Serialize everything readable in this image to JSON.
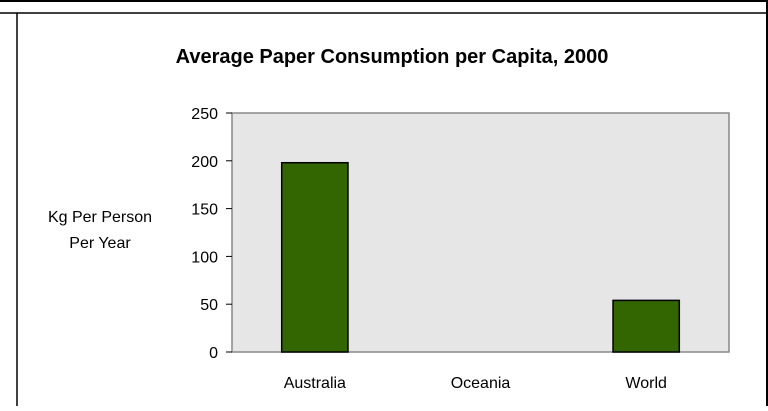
{
  "chart_data": {
    "type": "bar",
    "title": "Average Paper Consumption per Capita, 2000",
    "ylabel_lines": [
      "Kg Per Person",
      "Per Year"
    ],
    "categories": [
      "Australia",
      "Oceania",
      "World"
    ],
    "values": [
      198,
      0,
      54
    ],
    "ylim": [
      0,
      250
    ],
    "yticks": [
      0,
      50,
      100,
      150,
      200,
      250
    ],
    "ytick_labels": [
      "0",
      "50",
      "100",
      "150",
      "200",
      "250"
    ],
    "grid": false,
    "legend": "none",
    "bar_color": "#336600",
    "plot_background": "#e6e6e6"
  }
}
